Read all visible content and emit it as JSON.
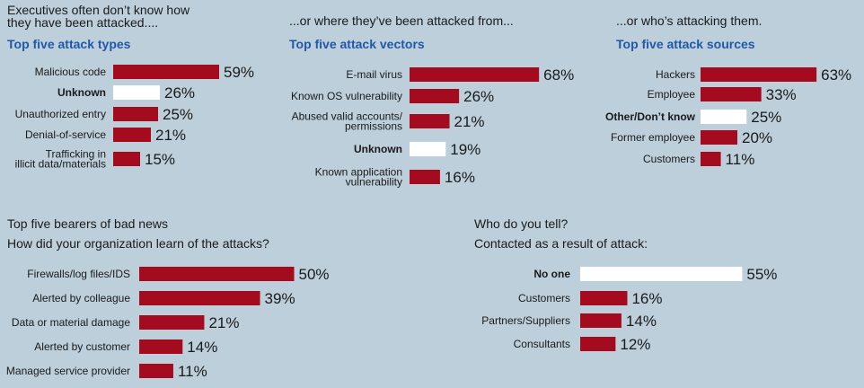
{
  "colors": {
    "bar": "#a50b1e",
    "highlight": "#ffffff",
    "background": "#bccfdb",
    "subtitle": "#2158a8"
  },
  "panel1": {
    "heading": "Executives often don’t know how\nthey have been attacked...."
  },
  "panel2": {
    "heading": "...or where they’ve been attacked from..."
  },
  "panel3": {
    "heading": "...or who’s attacking them."
  },
  "panel4": {
    "heading": "Top five bearers of bad news"
  },
  "panel5": {
    "heading": "Who do you tell?"
  },
  "chart_data": [
    {
      "id": "types",
      "type": "bar",
      "orientation": "horizontal",
      "title": "Top five attack types",
      "categories": [
        "Malicious code",
        "Unknown",
        "Unauthorized entry",
        "Denial-of-service",
        "Trafficking in\nillicit data/materials"
      ],
      "values": [
        59,
        26,
        25,
        21,
        15
      ],
      "value_labels": [
        "59%",
        "26%",
        "25%",
        "21%",
        "15%"
      ],
      "highlight": [
        false,
        true,
        false,
        false,
        false
      ],
      "xlim": [
        0,
        100
      ]
    },
    {
      "id": "vectors",
      "type": "bar",
      "orientation": "horizontal",
      "title": "Top five attack vectors",
      "categories": [
        "E-mail virus",
        "Known OS vulnerability",
        "Abused valid accounts/\npermissions",
        "Unknown",
        "Known application\nvulnerability"
      ],
      "values": [
        68,
        26,
        21,
        19,
        16
      ],
      "value_labels": [
        "68%",
        "26%",
        "21%",
        "19%",
        "16%"
      ],
      "highlight": [
        false,
        false,
        false,
        true,
        false
      ],
      "xlim": [
        0,
        100
      ]
    },
    {
      "id": "sources",
      "type": "bar",
      "orientation": "horizontal",
      "title": "Top five attack sources",
      "categories": [
        "Hackers",
        "Employee",
        "Other/Don’t know",
        "Former employee",
        "Customers"
      ],
      "values": [
        63,
        33,
        25,
        20,
        11
      ],
      "value_labels": [
        "63%",
        "33%",
        "25%",
        "20%",
        "11%"
      ],
      "highlight": [
        false,
        false,
        true,
        false,
        false
      ],
      "xlim": [
        0,
        100
      ]
    },
    {
      "id": "learn",
      "type": "bar",
      "orientation": "horizontal",
      "title": "How did your organization learn of the attacks?",
      "categories": [
        "Firewalls/log files/IDS",
        "Alerted by colleague",
        "Data or material damage",
        "Alerted by customer",
        "Managed service provider"
      ],
      "values": [
        50,
        39,
        21,
        14,
        11
      ],
      "value_labels": [
        "50%",
        "39%",
        "21%",
        "14%",
        "11%"
      ],
      "highlight": [
        false,
        false,
        false,
        false,
        false
      ],
      "xlim": [
        0,
        100
      ]
    },
    {
      "id": "tell",
      "type": "bar",
      "orientation": "horizontal",
      "title": "Contacted as a result of attack:",
      "categories": [
        "No one",
        "Customers",
        "Partners/Suppliers",
        "Consultants"
      ],
      "values": [
        55,
        16,
        14,
        12
      ],
      "value_labels": [
        "55%",
        "16%",
        "14%",
        "12%"
      ],
      "highlight": [
        true,
        false,
        false,
        false
      ],
      "xlim": [
        0,
        100
      ]
    }
  ]
}
